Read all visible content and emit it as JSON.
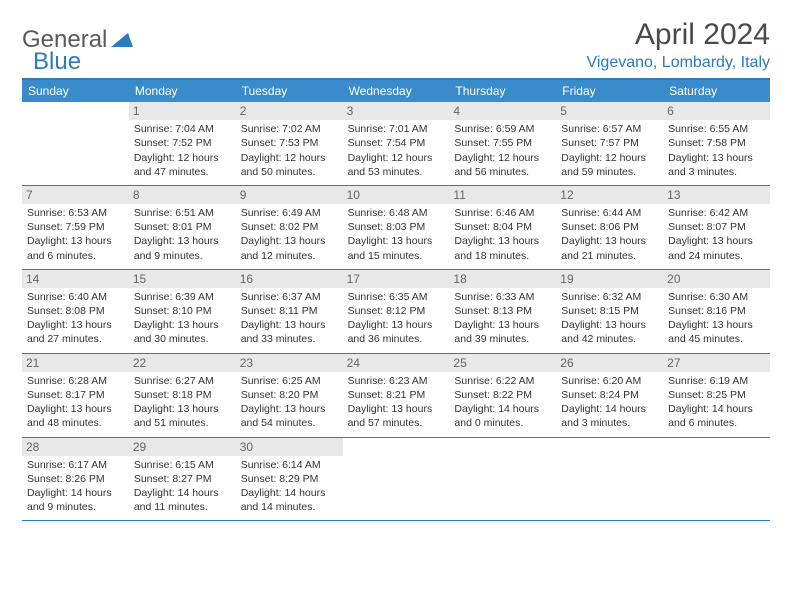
{
  "logo": {
    "text1": "General",
    "text2": "Blue"
  },
  "title": "April 2024",
  "subtitle": "Vigevano, Lombardy, Italy",
  "colors": {
    "header_bar": "#3a8bc9",
    "accent": "#2b7bbf",
    "daynum_bg": "#e8e8e8",
    "text": "#333333"
  },
  "weekdays": [
    "Sunday",
    "Monday",
    "Tuesday",
    "Wednesday",
    "Thursday",
    "Friday",
    "Saturday"
  ],
  "weeks": [
    [
      {
        "num": "",
        "lines": []
      },
      {
        "num": "1",
        "lines": [
          "Sunrise: 7:04 AM",
          "Sunset: 7:52 PM",
          "Daylight: 12 hours",
          "and 47 minutes."
        ]
      },
      {
        "num": "2",
        "lines": [
          "Sunrise: 7:02 AM",
          "Sunset: 7:53 PM",
          "Daylight: 12 hours",
          "and 50 minutes."
        ]
      },
      {
        "num": "3",
        "lines": [
          "Sunrise: 7:01 AM",
          "Sunset: 7:54 PM",
          "Daylight: 12 hours",
          "and 53 minutes."
        ]
      },
      {
        "num": "4",
        "lines": [
          "Sunrise: 6:59 AM",
          "Sunset: 7:55 PM",
          "Daylight: 12 hours",
          "and 56 minutes."
        ]
      },
      {
        "num": "5",
        "lines": [
          "Sunrise: 6:57 AM",
          "Sunset: 7:57 PM",
          "Daylight: 12 hours",
          "and 59 minutes."
        ]
      },
      {
        "num": "6",
        "lines": [
          "Sunrise: 6:55 AM",
          "Sunset: 7:58 PM",
          "Daylight: 13 hours",
          "and 3 minutes."
        ]
      }
    ],
    [
      {
        "num": "7",
        "lines": [
          "Sunrise: 6:53 AM",
          "Sunset: 7:59 PM",
          "Daylight: 13 hours",
          "and 6 minutes."
        ]
      },
      {
        "num": "8",
        "lines": [
          "Sunrise: 6:51 AM",
          "Sunset: 8:01 PM",
          "Daylight: 13 hours",
          "and 9 minutes."
        ]
      },
      {
        "num": "9",
        "lines": [
          "Sunrise: 6:49 AM",
          "Sunset: 8:02 PM",
          "Daylight: 13 hours",
          "and 12 minutes."
        ]
      },
      {
        "num": "10",
        "lines": [
          "Sunrise: 6:48 AM",
          "Sunset: 8:03 PM",
          "Daylight: 13 hours",
          "and 15 minutes."
        ]
      },
      {
        "num": "11",
        "lines": [
          "Sunrise: 6:46 AM",
          "Sunset: 8:04 PM",
          "Daylight: 13 hours",
          "and 18 minutes."
        ]
      },
      {
        "num": "12",
        "lines": [
          "Sunrise: 6:44 AM",
          "Sunset: 8:06 PM",
          "Daylight: 13 hours",
          "and 21 minutes."
        ]
      },
      {
        "num": "13",
        "lines": [
          "Sunrise: 6:42 AM",
          "Sunset: 8:07 PM",
          "Daylight: 13 hours",
          "and 24 minutes."
        ]
      }
    ],
    [
      {
        "num": "14",
        "lines": [
          "Sunrise: 6:40 AM",
          "Sunset: 8:08 PM",
          "Daylight: 13 hours",
          "and 27 minutes."
        ]
      },
      {
        "num": "15",
        "lines": [
          "Sunrise: 6:39 AM",
          "Sunset: 8:10 PM",
          "Daylight: 13 hours",
          "and 30 minutes."
        ]
      },
      {
        "num": "16",
        "lines": [
          "Sunrise: 6:37 AM",
          "Sunset: 8:11 PM",
          "Daylight: 13 hours",
          "and 33 minutes."
        ]
      },
      {
        "num": "17",
        "lines": [
          "Sunrise: 6:35 AM",
          "Sunset: 8:12 PM",
          "Daylight: 13 hours",
          "and 36 minutes."
        ]
      },
      {
        "num": "18",
        "lines": [
          "Sunrise: 6:33 AM",
          "Sunset: 8:13 PM",
          "Daylight: 13 hours",
          "and 39 minutes."
        ]
      },
      {
        "num": "19",
        "lines": [
          "Sunrise: 6:32 AM",
          "Sunset: 8:15 PM",
          "Daylight: 13 hours",
          "and 42 minutes."
        ]
      },
      {
        "num": "20",
        "lines": [
          "Sunrise: 6:30 AM",
          "Sunset: 8:16 PM",
          "Daylight: 13 hours",
          "and 45 minutes."
        ]
      }
    ],
    [
      {
        "num": "21",
        "lines": [
          "Sunrise: 6:28 AM",
          "Sunset: 8:17 PM",
          "Daylight: 13 hours",
          "and 48 minutes."
        ]
      },
      {
        "num": "22",
        "lines": [
          "Sunrise: 6:27 AM",
          "Sunset: 8:18 PM",
          "Daylight: 13 hours",
          "and 51 minutes."
        ]
      },
      {
        "num": "23",
        "lines": [
          "Sunrise: 6:25 AM",
          "Sunset: 8:20 PM",
          "Daylight: 13 hours",
          "and 54 minutes."
        ]
      },
      {
        "num": "24",
        "lines": [
          "Sunrise: 6:23 AM",
          "Sunset: 8:21 PM",
          "Daylight: 13 hours",
          "and 57 minutes."
        ]
      },
      {
        "num": "25",
        "lines": [
          "Sunrise: 6:22 AM",
          "Sunset: 8:22 PM",
          "Daylight: 14 hours",
          "and 0 minutes."
        ]
      },
      {
        "num": "26",
        "lines": [
          "Sunrise: 6:20 AM",
          "Sunset: 8:24 PM",
          "Daylight: 14 hours",
          "and 3 minutes."
        ]
      },
      {
        "num": "27",
        "lines": [
          "Sunrise: 6:19 AM",
          "Sunset: 8:25 PM",
          "Daylight: 14 hours",
          "and 6 minutes."
        ]
      }
    ],
    [
      {
        "num": "28",
        "lines": [
          "Sunrise: 6:17 AM",
          "Sunset: 8:26 PM",
          "Daylight: 14 hours",
          "and 9 minutes."
        ]
      },
      {
        "num": "29",
        "lines": [
          "Sunrise: 6:15 AM",
          "Sunset: 8:27 PM",
          "Daylight: 14 hours",
          "and 11 minutes."
        ]
      },
      {
        "num": "30",
        "lines": [
          "Sunrise: 6:14 AM",
          "Sunset: 8:29 PM",
          "Daylight: 14 hours",
          "and 14 minutes."
        ]
      },
      {
        "num": "",
        "lines": []
      },
      {
        "num": "",
        "lines": []
      },
      {
        "num": "",
        "lines": []
      },
      {
        "num": "",
        "lines": []
      }
    ]
  ]
}
